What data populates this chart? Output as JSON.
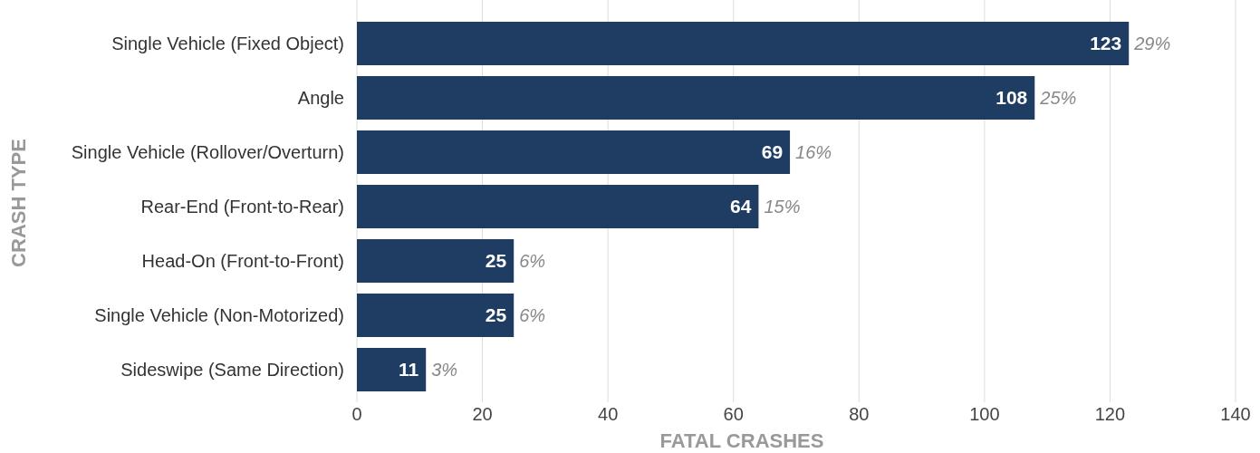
{
  "chart_data": {
    "type": "bar",
    "orientation": "horizontal",
    "xlabel": "FATAL CRASHES",
    "ylabel": "CRASH TYPE",
    "categories": [
      "Single Vehicle (Fixed Object)",
      "Angle",
      "Single Vehicle (Rollover/Overturn)",
      "Rear-End (Front-to-Rear)",
      "Head-On (Front-to-Front)",
      "Single Vehicle (Non-Motorized)",
      "Sideswipe (Same Direction)"
    ],
    "values": [
      123,
      108,
      69,
      64,
      25,
      25,
      11
    ],
    "color": "#1f3d63",
    "data_labels": true,
    "xlim": [
      0,
      140
    ],
    "xticks": [
      0,
      20,
      40,
      60,
      80,
      100,
      120,
      140
    ],
    "grid": "x",
    "annotations": [
      {
        "text": "29%",
        "x": 123,
        "y": "Single Vehicle (Fixed Object)"
      },
      {
        "text": "25%",
        "x": 108,
        "y": "Angle"
      },
      {
        "text": "16%",
        "x": 69,
        "y": "Single Vehicle (Rollover/Overturn)"
      },
      {
        "text": "15%",
        "x": 64,
        "y": "Rear-End (Front-to-Rear)"
      },
      {
        "text": "6%",
        "x": 25,
        "y": "Head-On (Front-to-Front)"
      },
      {
        "text": "6%",
        "x": 25,
        "y": "Single Vehicle (Non-Motorized)"
      },
      {
        "text": "3%",
        "x": 11,
        "y": "Sideswipe (Same Direction)"
      }
    ]
  }
}
